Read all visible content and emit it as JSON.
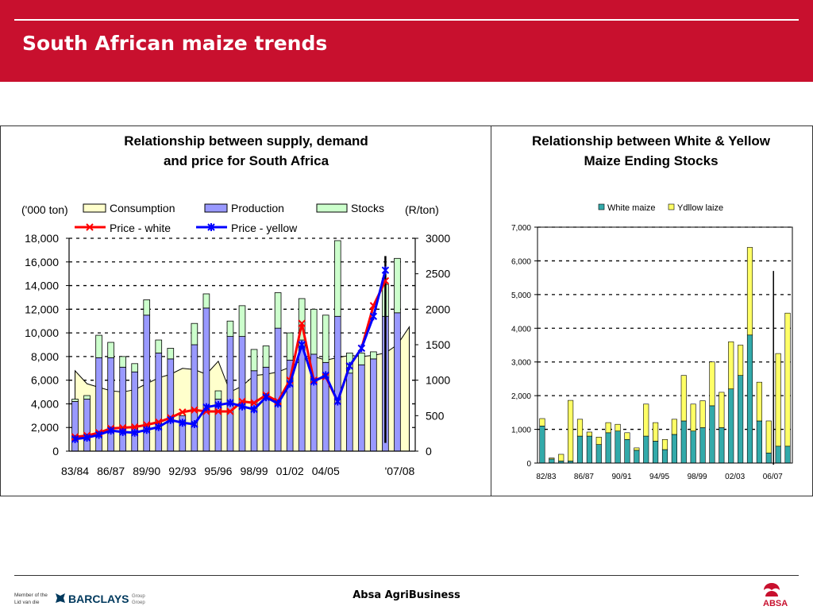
{
  "page": {
    "title": "South African maize trends",
    "footer": "Absa AgriBusiness",
    "logos": {
      "barclays_member_text": [
        "Member of the",
        "Lid van die"
      ],
      "barclays_name": "BARCLAYS",
      "barclays_group": [
        "Group",
        "Groep"
      ],
      "absa_name": "ABSA"
    },
    "colors": {
      "header_red": "#c8102e",
      "absa_red": "#c8102e",
      "barclays_blue": "#00395d"
    }
  },
  "chart_data": [
    {
      "type": "bar+line",
      "title": [
        "Relationship between supply, demand",
        "and price for South Africa"
      ],
      "y_left_label": "('000 ton)",
      "y_right_label": "(R/ton)",
      "y_left_ticks": [
        "18,000",
        "16,000",
        "14,000",
        "12,000",
        "10,000",
        "8,000",
        "6,000",
        "4,000",
        "2,000",
        "0"
      ],
      "y_right_ticks": [
        "3000",
        "2500",
        "2000",
        "1500",
        "1000",
        "500",
        "0"
      ],
      "ylim_left": [
        0,
        18000
      ],
      "ylim_right": [
        0,
        3000
      ],
      "x_tick_labels": [
        "83/84",
        "86/87",
        "89/90",
        "92/93",
        "95/96",
        "98/99",
        "01/02",
        "04/05",
        "'07/08"
      ],
      "grid": "dashed horizontal",
      "legend": {
        "consumption": "Consumption",
        "production": "Production",
        "stocks": "Stocks",
        "price_white": "Price - white",
        "price_yellow": "Price - yellow"
      },
      "colors": {
        "consumption": "#ffffcc",
        "production": "#9999ff",
        "stocks": "#ccffcc",
        "price_white": "#ff0000",
        "price_yellow": "#0000ff"
      },
      "consumption": [
        6800,
        5700,
        5400,
        5100,
        5000,
        5200,
        5700,
        6200,
        6500,
        7000,
        6900,
        6500,
        7600,
        5000,
        5500,
        6400,
        6500,
        6700,
        7100,
        7700,
        8000,
        7700,
        7900,
        8100,
        8000,
        8100,
        8300,
        9000,
        10500
      ],
      "production": [
        4200,
        4400,
        7900,
        7900,
        7100,
        6700,
        11500,
        8300,
        7800,
        3000,
        9000,
        12100,
        4400,
        9700,
        9700,
        6800,
        7100,
        10400,
        7700,
        9400,
        8200,
        7500,
        11400,
        6600,
        7300,
        7800,
        11400,
        11700
      ],
      "stocks": [
        200,
        300,
        1900,
        1300,
        900,
        700,
        1300,
        1100,
        900,
        0,
        1800,
        1200,
        700,
        1300,
        2600,
        1800,
        1800,
        3000,
        2300,
        3500,
        3800,
        4000,
        6400,
        1700,
        1000,
        600,
        2700,
        4600
      ],
      "price_white": [
        200,
        220,
        260,
        320,
        330,
        340,
        370,
        410,
        470,
        550,
        580,
        560,
        560,
        560,
        700,
        680,
        790,
        700,
        1000,
        1800,
        1000,
        1050,
        700,
        1200,
        1450,
        2050,
        2400
      ],
      "price_yellow": [
        170,
        190,
        230,
        290,
        270,
        260,
        300,
        340,
        440,
        400,
        380,
        620,
        650,
        680,
        630,
        590,
        760,
        670,
        950,
        1500,
        980,
        1070,
        700,
        1200,
        1450,
        1900,
        2550
      ],
      "annotation_vertical_line": {
        "x_index": 26,
        "y_top": 16500,
        "y_bottom": 700
      }
    },
    {
      "type": "stacked_bar",
      "title": [
        "Relationship between White & Yellow",
        "Maize Ending Stocks"
      ],
      "legend": [
        "White maize",
        "Ydllow laize"
      ],
      "colors": {
        "white_maize": "#33aaaa",
        "yellow_maize": "#ffff66"
      },
      "y_ticks": [
        "7,000",
        "6,000",
        "5,000",
        "4,000",
        "3,000",
        "2,000",
        "1,000",
        "0"
      ],
      "ylim": [
        0,
        7000
      ],
      "x_tick_labels": [
        "82/83",
        "86/87",
        "90/91",
        "94/95",
        "98/99",
        "02/03",
        "06/07"
      ],
      "grid": "dashed horizontal",
      "series": [
        {
          "name": "White maize",
          "values": [
            1100,
            120,
            60,
            60,
            800,
            800,
            550,
            900,
            950,
            700,
            380,
            800,
            650,
            400,
            850,
            1250,
            950,
            1050,
            1700,
            1050,
            2200,
            2600,
            3800,
            1250,
            300,
            500,
            500
          ]
        },
        {
          "name": "Ydllow laize",
          "values": [
            220,
            30,
            200,
            1800,
            500,
            120,
            220,
            300,
            200,
            200,
            70,
            950,
            550,
            300,
            450,
            1350,
            800,
            800,
            1300,
            1050,
            1400,
            900,
            2600,
            1150,
            950,
            2750,
            3950
          ]
        }
      ],
      "annotation_vertical_line": {
        "x_index": 25,
        "y_top": 5700,
        "y_bottom": -50
      }
    }
  ]
}
